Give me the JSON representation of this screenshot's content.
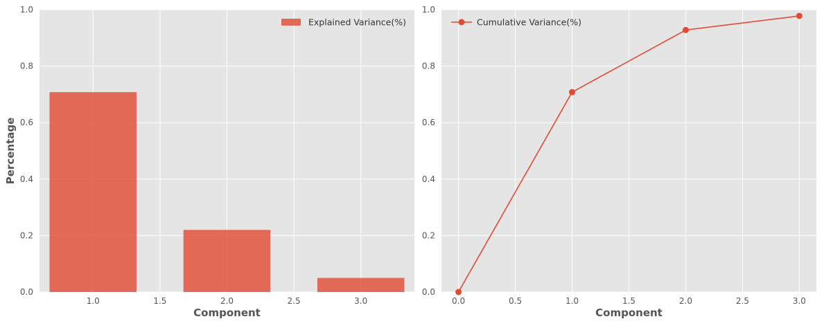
{
  "chart_data": [
    {
      "type": "bar",
      "xlabel": "Component",
      "ylabel": "Percentage",
      "x": [
        1.0,
        2.0,
        3.0
      ],
      "series": [
        {
          "name": "Explained Variance(%)",
          "values": [
            0.708,
            0.22,
            0.05
          ],
          "color": "#E24A33"
        }
      ],
      "xlim": [
        0.6,
        3.4
      ],
      "ylim": [
        0,
        1.0
      ],
      "xticks": [
        "1.0",
        "1.5",
        "2.0",
        "2.5",
        "3.0"
      ],
      "yticks": [
        "0.0",
        "0.2",
        "0.4",
        "0.6",
        "0.8",
        "1.0"
      ],
      "grid": true,
      "legend_position": "top-right"
    },
    {
      "type": "line",
      "xlabel": "Component",
      "ylabel": "",
      "x": [
        0,
        1,
        2,
        3
      ],
      "series": [
        {
          "name": "Cumulative Variance(%)",
          "values": [
            0.0,
            0.708,
            0.928,
            0.978
          ],
          "color": "#E24A33",
          "marker": "circle"
        }
      ],
      "xlim": [
        -0.15,
        3.15
      ],
      "ylim": [
        0,
        1.0
      ],
      "xticks": [
        "0.0",
        "0.5",
        "1.0",
        "1.5",
        "2.0",
        "2.5",
        "3.0"
      ],
      "yticks": [
        "0.0",
        "0.2",
        "0.4",
        "0.6",
        "0.8",
        "1.0"
      ],
      "grid": true,
      "legend_position": "top-left"
    }
  ]
}
